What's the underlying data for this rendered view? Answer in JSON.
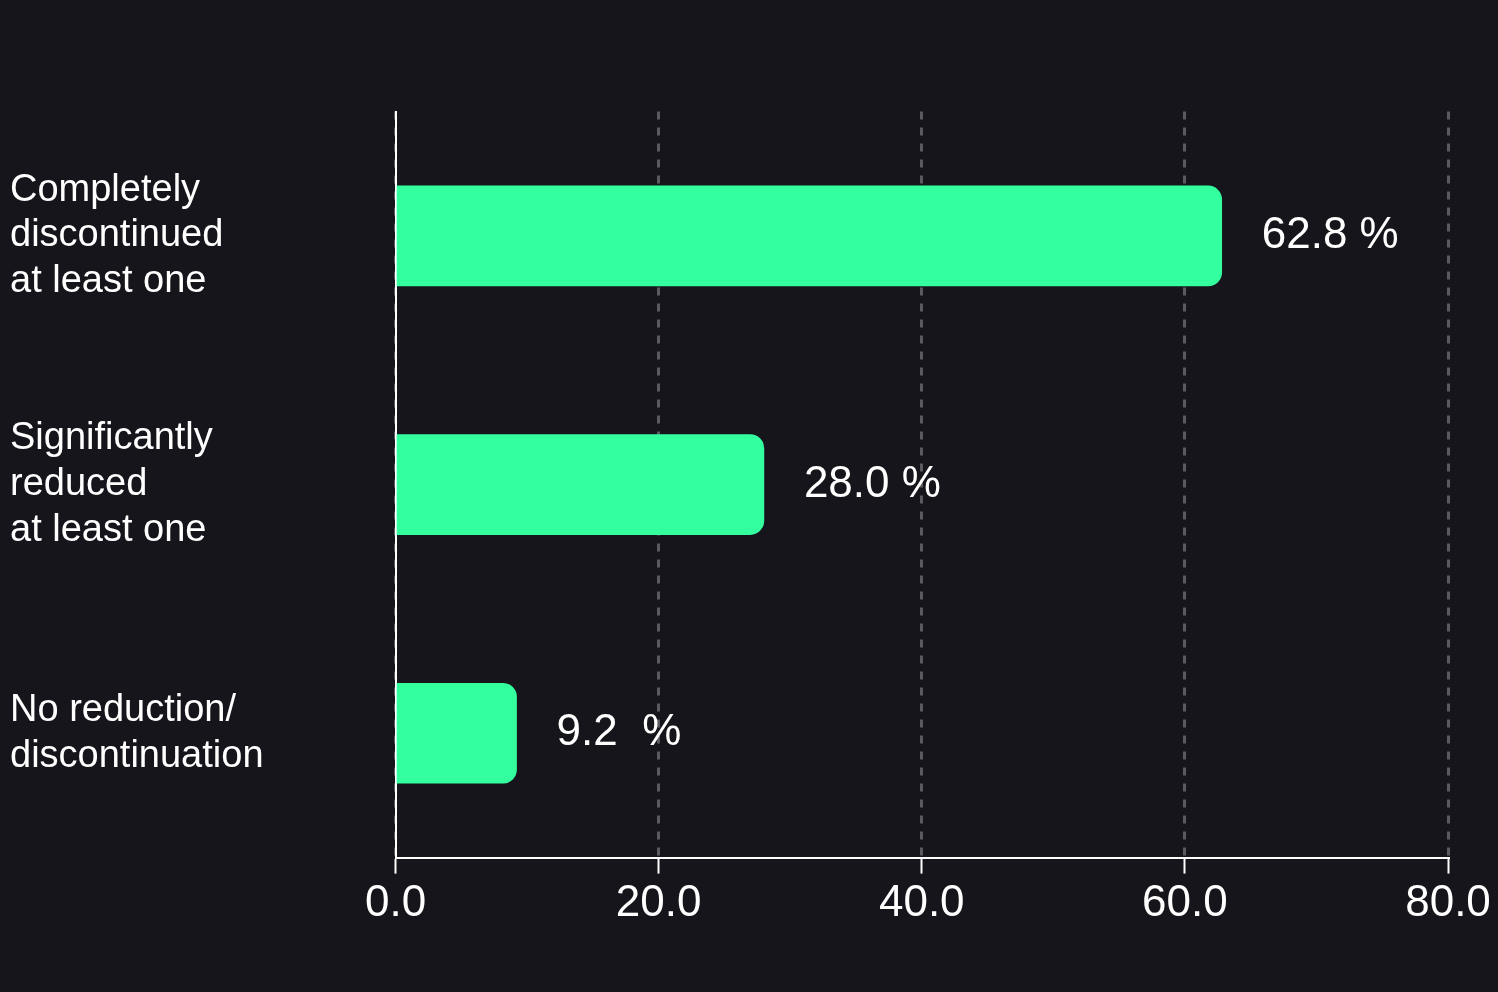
{
  "chart_data": {
    "type": "bar",
    "orientation": "horizontal",
    "categories": [
      "Completely\ndiscontinued\nat least one",
      "Significantly\nreduced\nat least one",
      "No reduction/\ndiscontinuation"
    ],
    "values": [
      62.8,
      28.0,
      9.2
    ],
    "value_labels": [
      "62.8 %",
      "28.0 %",
      "9.2  %"
    ],
    "color": "#33ff9f",
    "xlim": [
      0,
      80
    ],
    "xticks": [
      {
        "value": 0,
        "label": "0.0"
      },
      {
        "value": 20,
        "label": "20.0"
      },
      {
        "value": 40,
        "label": "40.0"
      },
      {
        "value": 60,
        "label": "60.0"
      },
      {
        "value": 80,
        "label": "80.0"
      }
    ],
    "grid": "x",
    "legend": false
  }
}
